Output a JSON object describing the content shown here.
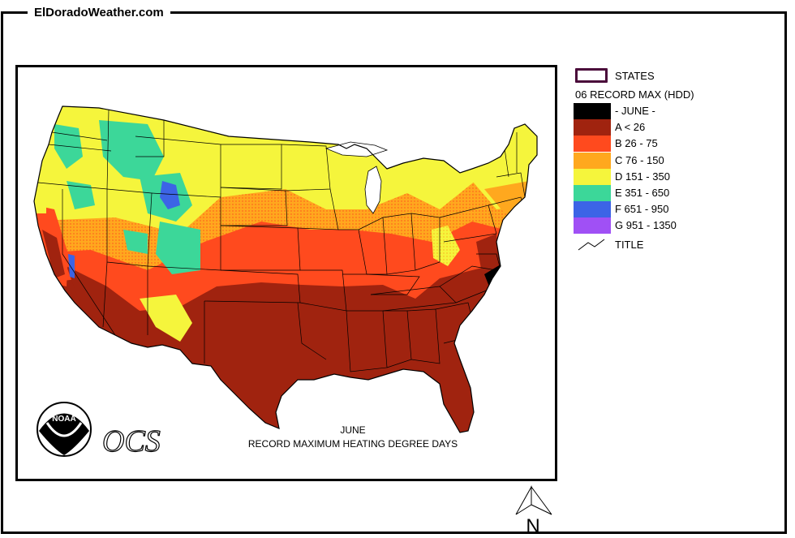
{
  "site": {
    "title": "ElDoradoWeather.com"
  },
  "map": {
    "caption_line1": "JUNE",
    "caption_line2": "RECORD MAXIMUM HEATING DEGREE DAYS",
    "noaa_text": "NOAA",
    "ocs_text": "OCS"
  },
  "legend": {
    "states_label": "STATES",
    "layer_title": "06 RECORD MAX (HDD)",
    "title_label": "TITLE",
    "classes": [
      {
        "label": "- JUNE -",
        "color": "#000000"
      },
      {
        "label": "A < 26",
        "color": "#A0230F"
      },
      {
        "label": "B 26 - 75",
        "color": "#FF4A1E"
      },
      {
        "label": "C 76 - 150",
        "color": "#FFA81E"
      },
      {
        "label": "D 151 - 350",
        "color": "#F5F53C"
      },
      {
        "label": "E 351 - 650",
        "color": "#3CD799"
      },
      {
        "label": "F 651 - 950",
        "color": "#3C64E6"
      },
      {
        "label": "G 951 - 1350",
        "color": "#A050F5"
      }
    ]
  },
  "north_arrow": {
    "label": "N"
  }
}
